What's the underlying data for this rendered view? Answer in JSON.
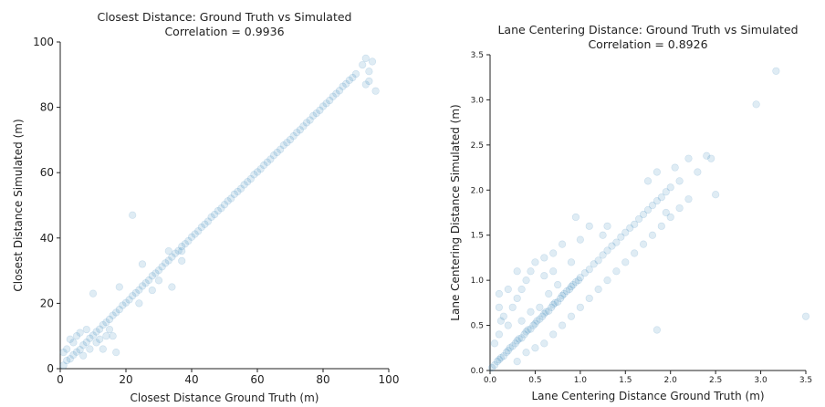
{
  "chart_data": [
    {
      "type": "scatter",
      "title": "Closest Distance: Ground Truth vs Simulated",
      "subtitle": "Correlation = 0.9936",
      "xlabel": "Closest Distance Ground Truth (m)",
      "ylabel": "Closest Distance Simulated (m)",
      "xlim": [
        0,
        100
      ],
      "ylim": [
        0,
        100
      ],
      "xticks": [
        "0",
        "20",
        "40",
        "60",
        "80",
        "100"
      ],
      "yticks": [
        "0",
        "20",
        "40",
        "60",
        "80",
        "100"
      ],
      "grid": false,
      "color": "#1f77b4",
      "points": [
        [
          1,
          1
        ],
        [
          2,
          2.5
        ],
        [
          3,
          3
        ],
        [
          4,
          4.2
        ],
        [
          5,
          5.1
        ],
        [
          6,
          5.8
        ],
        [
          7,
          7.2
        ],
        [
          8,
          8.1
        ],
        [
          9,
          9.3
        ],
        [
          10,
          10.2
        ],
        [
          2,
          6
        ],
        [
          4,
          8
        ],
        [
          5,
          10
        ],
        [
          3,
          9
        ],
        [
          6,
          11
        ],
        [
          8,
          12
        ],
        [
          1,
          5
        ],
        [
          7,
          4
        ],
        [
          9,
          6
        ],
        [
          11,
          8
        ],
        [
          12,
          9
        ],
        [
          14,
          10
        ],
        [
          15,
          12
        ],
        [
          13,
          6
        ],
        [
          16,
          10
        ],
        [
          17,
          5
        ],
        [
          11,
          11.3
        ],
        [
          12,
          12.1
        ],
        [
          13,
          13.4
        ],
        [
          14,
          14.2
        ],
        [
          15,
          15.1
        ],
        [
          16,
          16.3
        ],
        [
          17,
          17.2
        ],
        [
          18,
          18.1
        ],
        [
          19,
          19.4
        ],
        [
          20,
          20.2
        ],
        [
          21,
          21.1
        ],
        [
          22,
          22.3
        ],
        [
          23,
          23.2
        ],
        [
          24,
          24.1
        ],
        [
          25,
          25.3
        ],
        [
          26,
          26.2
        ],
        [
          27,
          27.1
        ],
        [
          28,
          28.4
        ],
        [
          29,
          29.2
        ],
        [
          30,
          30.1
        ],
        [
          22,
          47
        ],
        [
          10,
          23
        ],
        [
          18,
          25
        ],
        [
          25,
          32
        ],
        [
          33,
          36
        ],
        [
          30,
          27
        ],
        [
          37,
          36
        ],
        [
          37,
          33
        ],
        [
          34,
          25
        ],
        [
          24,
          20
        ],
        [
          28,
          24
        ],
        [
          31,
          31.2
        ],
        [
          32,
          32.3
        ],
        [
          33,
          33.1
        ],
        [
          34,
          34.2
        ],
        [
          35,
          35.3
        ],
        [
          36,
          36.1
        ],
        [
          37,
          37.4
        ],
        [
          38,
          38.2
        ],
        [
          39,
          39.1
        ],
        [
          40,
          40.3
        ],
        [
          41,
          41.2
        ],
        [
          42,
          42.1
        ],
        [
          43,
          43.3
        ],
        [
          44,
          44.2
        ],
        [
          45,
          45.1
        ],
        [
          46,
          46.4
        ],
        [
          47,
          47.2
        ],
        [
          48,
          48.3
        ],
        [
          49,
          49.1
        ],
        [
          50,
          50.2
        ],
        [
          51,
          51.3
        ],
        [
          52,
          52.1
        ],
        [
          53,
          53.4
        ],
        [
          54,
          54.2
        ],
        [
          55,
          55.1
        ],
        [
          56,
          56.3
        ],
        [
          57,
          57.2
        ],
        [
          58,
          58.1
        ],
        [
          59,
          59.4
        ],
        [
          60,
          60.2
        ],
        [
          61,
          61.1
        ],
        [
          62,
          62.3
        ],
        [
          63,
          63.2
        ],
        [
          64,
          64.1
        ],
        [
          65,
          65.3
        ],
        [
          66,
          66.2
        ],
        [
          67,
          67.1
        ],
        [
          68,
          68.4
        ],
        [
          69,
          69.2
        ],
        [
          70,
          70.1
        ],
        [
          71,
          71.2
        ],
        [
          72,
          72.3
        ],
        [
          73,
          73.1
        ],
        [
          74,
          74.2
        ],
        [
          75,
          75.3
        ],
        [
          76,
          76.1
        ],
        [
          77,
          77.4
        ],
        [
          78,
          78.2
        ],
        [
          79,
          79.1
        ],
        [
          80,
          80.3
        ],
        [
          81,
          81.2
        ],
        [
          82,
          82.1
        ],
        [
          83,
          83.3
        ],
        [
          84,
          84.2
        ],
        [
          85,
          85.1
        ],
        [
          86,
          86.4
        ],
        [
          87,
          87.2
        ],
        [
          88,
          88.3
        ],
        [
          89,
          89.1
        ],
        [
          90,
          90.2
        ],
        [
          92,
          93
        ],
        [
          93,
          95
        ],
        [
          95,
          94
        ],
        [
          94,
          91
        ],
        [
          96,
          85
        ],
        [
          93,
          87
        ],
        [
          94,
          88
        ]
      ]
    },
    {
      "type": "scatter",
      "title": "Lane Centering Distance: Ground Truth vs Simulated",
      "subtitle": "Correlation = 0.8926",
      "xlabel": "Lane Centering Distance Ground Truth (m)",
      "ylabel": "Lane Centering Distance Simulated (m)",
      "xlim": [
        0,
        3.5
      ],
      "ylim": [
        0,
        3.5
      ],
      "xticks": [
        "0.0",
        "0.5",
        "1.0",
        "1.5",
        "2.0",
        "2.5",
        "3.0",
        "3.5"
      ],
      "yticks": [
        "0.0",
        "0.5",
        "1.0",
        "1.5",
        "2.0",
        "2.5",
        "3.0",
        "3.5"
      ],
      "grid": false,
      "color": "#1f77b4",
      "points": [
        [
          0.02,
          0.03
        ],
        [
          0.05,
          0.06
        ],
        [
          0.08,
          0.1
        ],
        [
          0.1,
          0.12
        ],
        [
          0.12,
          0.14
        ],
        [
          0.15,
          0.16
        ],
        [
          0.18,
          0.2
        ],
        [
          0.2,
          0.22
        ],
        [
          0.22,
          0.25
        ],
        [
          0.25,
          0.27
        ],
        [
          0.28,
          0.3
        ],
        [
          0.3,
          0.33
        ],
        [
          0.32,
          0.35
        ],
        [
          0.35,
          0.36
        ],
        [
          0.38,
          0.4
        ],
        [
          0.4,
          0.43
        ],
        [
          0.42,
          0.45
        ],
        [
          0.45,
          0.46
        ],
        [
          0.48,
          0.5
        ],
        [
          0.5,
          0.52
        ],
        [
          0.52,
          0.55
        ],
        [
          0.55,
          0.57
        ],
        [
          0.58,
          0.6
        ],
        [
          0.6,
          0.63
        ],
        [
          0.62,
          0.65
        ],
        [
          0.65,
          0.66
        ],
        [
          0.68,
          0.7
        ],
        [
          0.7,
          0.73
        ],
        [
          0.72,
          0.75
        ],
        [
          0.75,
          0.76
        ],
        [
          0.78,
          0.8
        ],
        [
          0.8,
          0.83
        ],
        [
          0.82,
          0.85
        ],
        [
          0.85,
          0.88
        ],
        [
          0.88,
          0.9
        ],
        [
          0.9,
          0.93
        ],
        [
          0.92,
          0.95
        ],
        [
          0.95,
          0.98
        ],
        [
          0.98,
          1.0
        ],
        [
          1.0,
          1.03
        ],
        [
          1.05,
          1.08
        ],
        [
          1.1,
          1.12
        ],
        [
          1.15,
          1.18
        ],
        [
          1.2,
          1.22
        ],
        [
          1.25,
          1.28
        ],
        [
          1.3,
          1.33
        ],
        [
          1.35,
          1.38
        ],
        [
          1.4,
          1.42
        ],
        [
          1.45,
          1.48
        ],
        [
          1.5,
          1.53
        ],
        [
          1.55,
          1.58
        ],
        [
          1.6,
          1.62
        ],
        [
          1.65,
          1.68
        ],
        [
          1.7,
          1.73
        ],
        [
          1.75,
          1.78
        ],
        [
          1.8,
          1.83
        ],
        [
          1.85,
          1.88
        ],
        [
          1.9,
          1.92
        ],
        [
          1.95,
          1.98
        ],
        [
          2.0,
          2.03
        ],
        [
          0.1,
          0.4
        ],
        [
          0.15,
          0.6
        ],
        [
          0.2,
          0.5
        ],
        [
          0.05,
          0.3
        ],
        [
          0.3,
          0.8
        ],
        [
          0.25,
          0.7
        ],
        [
          0.35,
          0.9
        ],
        [
          0.4,
          1.0
        ],
        [
          0.12,
          0.55
        ],
        [
          0.45,
          1.1
        ],
        [
          0.1,
          0.7
        ],
        [
          0.2,
          0.9
        ],
        [
          0.3,
          1.1
        ],
        [
          0.5,
          1.2
        ],
        [
          0.6,
          1.25
        ],
        [
          0.7,
          1.3
        ],
        [
          0.8,
          1.4
        ],
        [
          0.9,
          1.2
        ],
        [
          1.0,
          1.45
        ],
        [
          1.1,
          1.6
        ],
        [
          0.3,
          0.1
        ],
        [
          0.4,
          0.2
        ],
        [
          0.5,
          0.25
        ],
        [
          0.6,
          0.3
        ],
        [
          0.7,
          0.4
        ],
        [
          0.8,
          0.5
        ],
        [
          0.9,
          0.6
        ],
        [
          1.0,
          0.7
        ],
        [
          1.1,
          0.8
        ],
        [
          1.2,
          0.9
        ],
        [
          1.3,
          1.0
        ],
        [
          1.4,
          1.1
        ],
        [
          1.5,
          1.2
        ],
        [
          1.6,
          1.3
        ],
        [
          1.7,
          1.4
        ],
        [
          1.8,
          1.5
        ],
        [
          1.9,
          1.6
        ],
        [
          2.0,
          1.7
        ],
        [
          2.1,
          1.8
        ],
        [
          2.2,
          1.9
        ],
        [
          0.95,
          1.7
        ],
        [
          1.3,
          1.6
        ],
        [
          1.75,
          2.1
        ],
        [
          1.85,
          2.2
        ],
        [
          2.05,
          2.25
        ],
        [
          2.2,
          2.35
        ],
        [
          2.3,
          2.2
        ],
        [
          2.4,
          2.38
        ],
        [
          2.45,
          2.35
        ],
        [
          2.1,
          2.1
        ],
        [
          2.5,
          1.95
        ],
        [
          1.25,
          1.5
        ],
        [
          1.95,
          1.75
        ],
        [
          0.6,
          1.05
        ],
        [
          0.7,
          1.1
        ],
        [
          0.35,
          0.55
        ],
        [
          0.45,
          0.65
        ],
        [
          0.55,
          0.7
        ],
        [
          0.65,
          0.85
        ],
        [
          0.75,
          0.95
        ],
        [
          1.85,
          0.45
        ],
        [
          0.1,
          0.85
        ],
        [
          2.95,
          2.95
        ],
        [
          3.17,
          3.32
        ],
        [
          3.5,
          0.6
        ]
      ]
    }
  ]
}
